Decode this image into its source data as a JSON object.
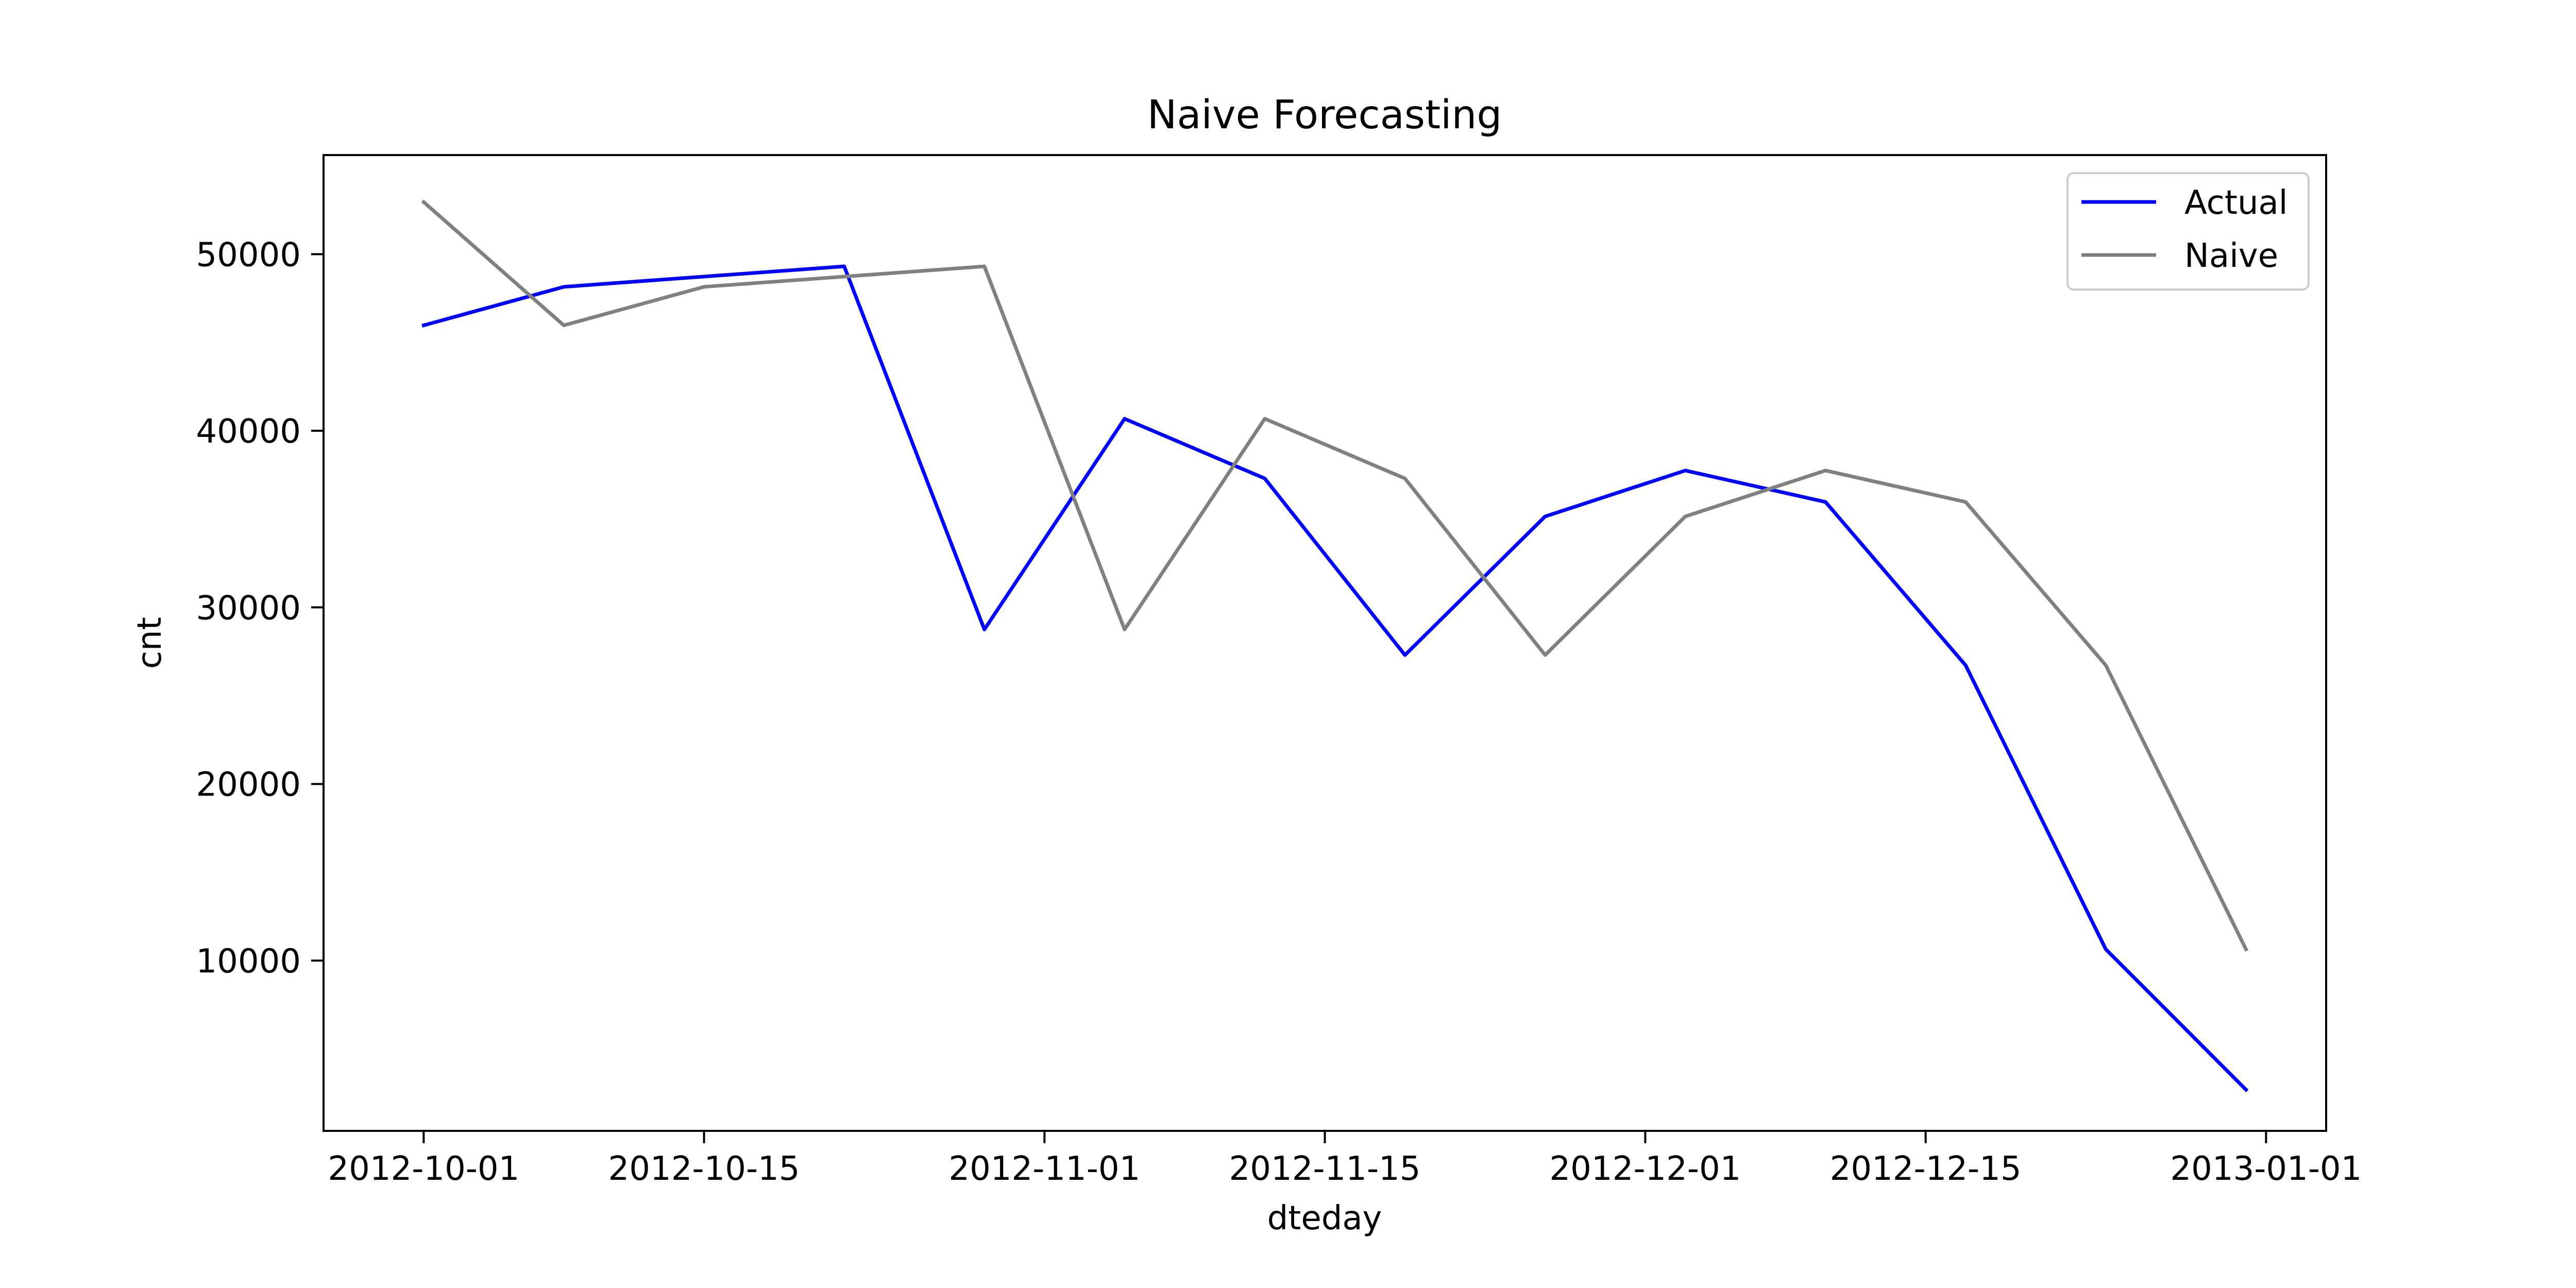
{
  "chart_data": {
    "type": "line",
    "title": "Naive Forecasting",
    "xlabel": "dteday",
    "ylabel": "cnt",
    "x": [
      "2012-10-01",
      "2012-10-08",
      "2012-10-15",
      "2012-10-22",
      "2012-10-29",
      "2012-11-05",
      "2012-11-12",
      "2012-11-19",
      "2012-11-26",
      "2012-12-03",
      "2012-12-10",
      "2012-12-17",
      "2012-12-24",
      "2012-12-31"
    ],
    "series": [
      {
        "name": "Actual",
        "color": "#0000ff",
        "values": [
          45970,
          48150,
          null,
          49310,
          28750,
          40680,
          37300,
          27300,
          35150,
          37750,
          35970,
          26720,
          10640,
          2690
        ]
      },
      {
        "name": "Naive",
        "color": "#808080",
        "values": [
          52950,
          45970,
          48150,
          null,
          49310,
          28750,
          40680,
          37300,
          27300,
          35150,
          37750,
          35970,
          26720,
          10640
        ]
      }
    ],
    "x_ticks": [
      "2012-10-01",
      "2012-10-15",
      "2012-11-01",
      "2012-11-15",
      "2012-12-01",
      "2012-12-15",
      "2013-01-01"
    ],
    "y_ticks": [
      10000,
      20000,
      30000,
      40000,
      50000
    ],
    "xlim": [
      "2012-09-26",
      "2013-01-04"
    ],
    "ylim": [
      360,
      55610
    ],
    "grid": false,
    "legend_position": "upper right"
  }
}
